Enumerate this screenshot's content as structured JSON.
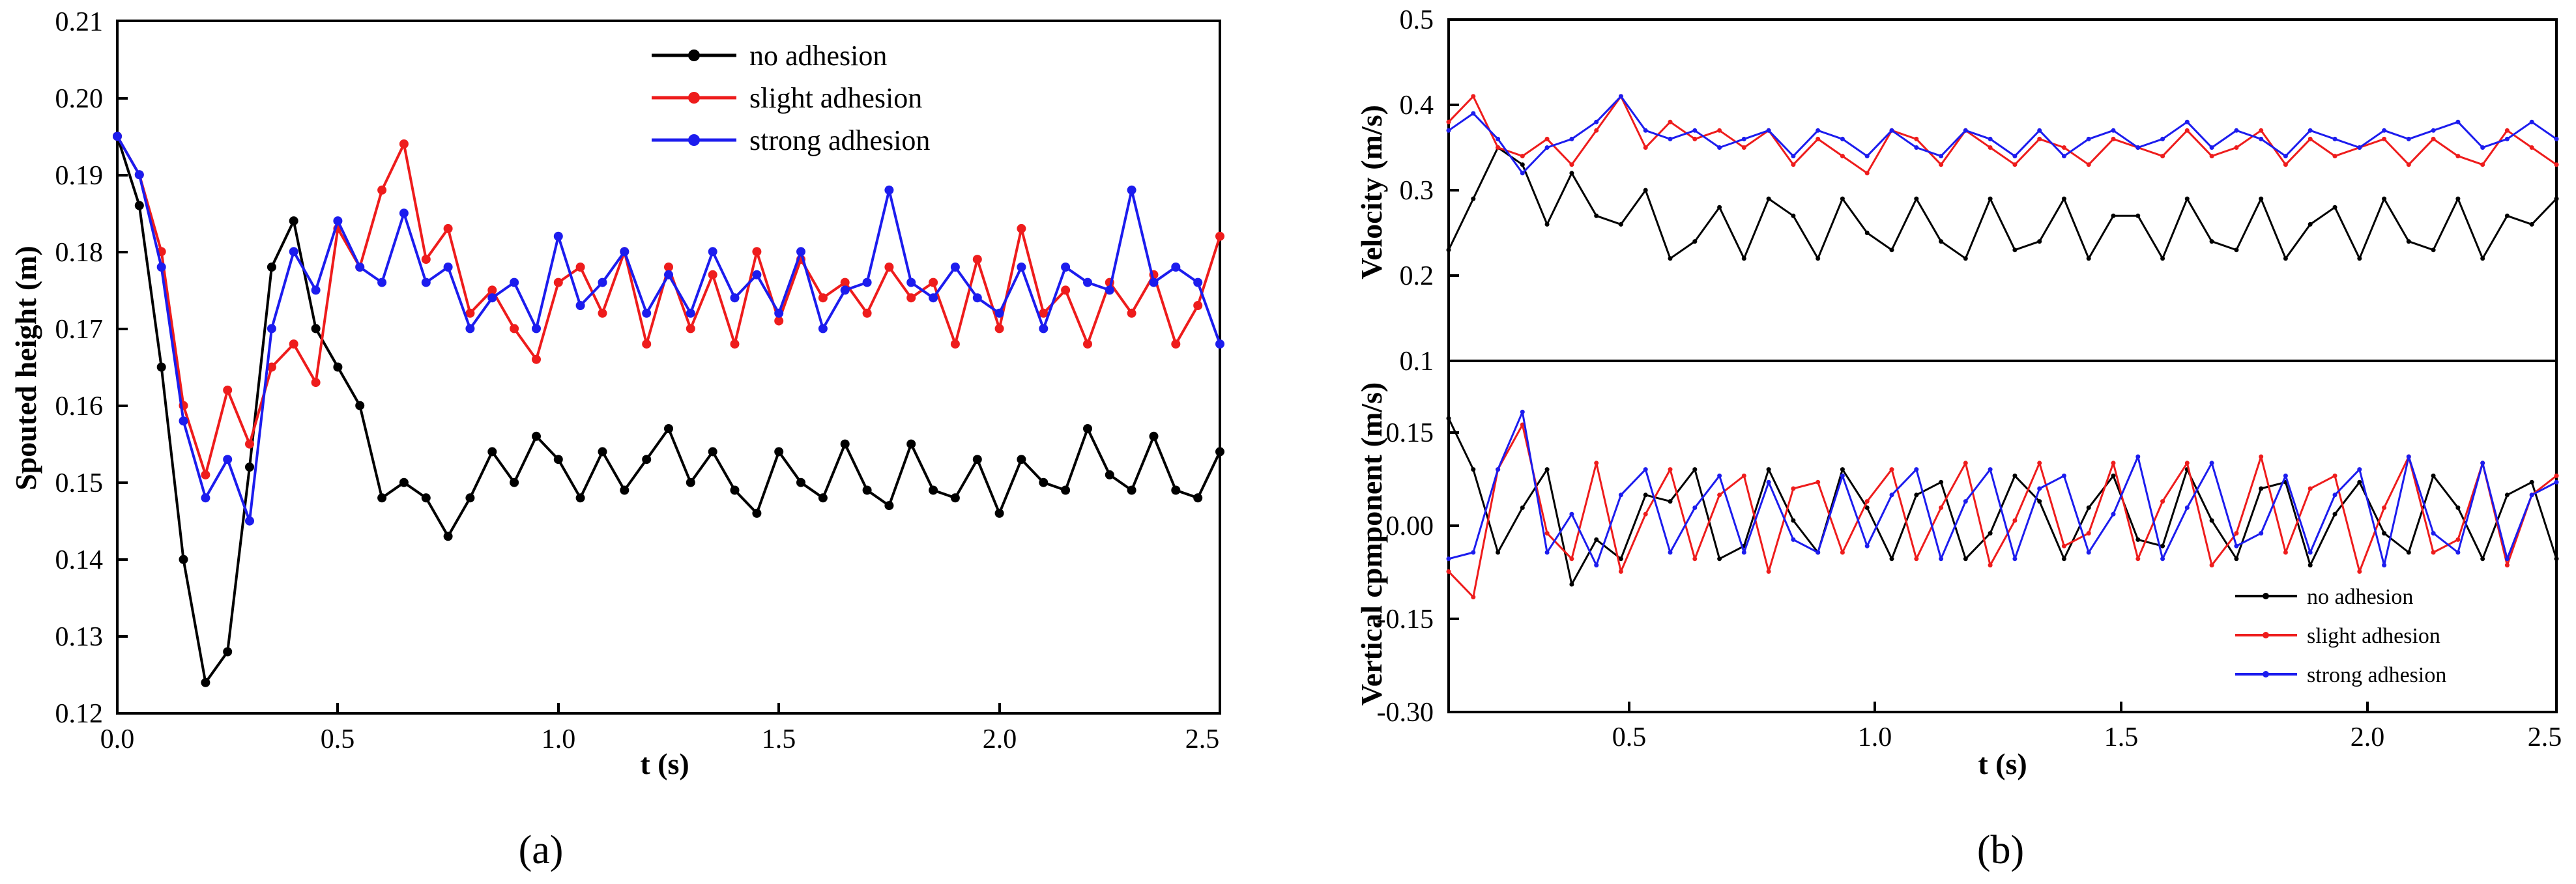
{
  "colors": {
    "no_adhesion": "#000000",
    "slight_adhesion": "#ee1c1c",
    "strong_adhesion": "#1c1cee"
  },
  "captions": {
    "a": "(a)",
    "b": "(b)"
  },
  "chart_data": [
    {
      "id": "a",
      "type": "line",
      "title": "",
      "xlabel": "t (s)",
      "ylabel": "Spouted height (m)",
      "xlim": [
        0.0,
        2.5
      ],
      "ylim": [
        0.12,
        0.21
      ],
      "x_ticks": [
        "0.0",
        "0.5",
        "1.0",
        "1.5",
        "2.0",
        "2.5"
      ],
      "y_ticks": [
        "0.12",
        "0.13",
        "0.14",
        "0.15",
        "0.16",
        "0.17",
        "0.18",
        "0.19",
        "0.20",
        "0.21"
      ],
      "legend_position": "top-right",
      "series": [
        {
          "name": "no adhesion",
          "color_key": "no_adhesion",
          "x": [
            0.0,
            0.05,
            0.1,
            0.15,
            0.2,
            0.25,
            0.3,
            0.35,
            0.4,
            0.45,
            0.5,
            0.55,
            0.6,
            0.65,
            0.7,
            0.75,
            0.8,
            0.85,
            0.9,
            0.95,
            1.0,
            1.05,
            1.1,
            1.15,
            1.2,
            1.25,
            1.3,
            1.35,
            1.4,
            1.45,
            1.5,
            1.55,
            1.6,
            1.65,
            1.7,
            1.75,
            1.8,
            1.85,
            1.9,
            1.95,
            2.0,
            2.05,
            2.1,
            2.15,
            2.2,
            2.25,
            2.3,
            2.35,
            2.4,
            2.45,
            2.5
          ],
          "y": [
            0.195,
            0.186,
            0.165,
            0.14,
            0.124,
            0.128,
            0.152,
            0.178,
            0.184,
            0.17,
            0.165,
            0.16,
            0.148,
            0.15,
            0.148,
            0.143,
            0.148,
            0.154,
            0.15,
            0.156,
            0.153,
            0.148,
            0.154,
            0.149,
            0.153,
            0.157,
            0.15,
            0.154,
            0.149,
            0.146,
            0.154,
            0.15,
            0.148,
            0.155,
            0.149,
            0.147,
            0.155,
            0.149,
            0.148,
            0.153,
            0.146,
            0.153,
            0.15,
            0.149,
            0.157,
            0.151,
            0.149,
            0.156,
            0.149,
            0.148,
            0.154
          ]
        },
        {
          "name": "slight adhesion",
          "color_key": "slight_adhesion",
          "x": [
            0.0,
            0.05,
            0.1,
            0.15,
            0.2,
            0.25,
            0.3,
            0.35,
            0.4,
            0.45,
            0.5,
            0.55,
            0.6,
            0.65,
            0.7,
            0.75,
            0.8,
            0.85,
            0.9,
            0.95,
            1.0,
            1.05,
            1.1,
            1.15,
            1.2,
            1.25,
            1.3,
            1.35,
            1.4,
            1.45,
            1.5,
            1.55,
            1.6,
            1.65,
            1.7,
            1.75,
            1.8,
            1.85,
            1.9,
            1.95,
            2.0,
            2.05,
            2.1,
            2.15,
            2.2,
            2.25,
            2.3,
            2.35,
            2.4,
            2.45,
            2.5
          ],
          "y": [
            0.195,
            0.19,
            0.18,
            0.16,
            0.151,
            0.162,
            0.155,
            0.165,
            0.168,
            0.163,
            0.183,
            0.178,
            0.188,
            0.194,
            0.179,
            0.183,
            0.172,
            0.175,
            0.17,
            0.166,
            0.176,
            0.178,
            0.172,
            0.18,
            0.168,
            0.178,
            0.17,
            0.177,
            0.168,
            0.18,
            0.171,
            0.179,
            0.174,
            0.176,
            0.172,
            0.178,
            0.174,
            0.176,
            0.168,
            0.179,
            0.17,
            0.183,
            0.172,
            0.175,
            0.168,
            0.176,
            0.172,
            0.177,
            0.168,
            0.173,
            0.182
          ]
        },
        {
          "name": "strong adhesion",
          "color_key": "strong_adhesion",
          "x": [
            0.0,
            0.05,
            0.1,
            0.15,
            0.2,
            0.25,
            0.3,
            0.35,
            0.4,
            0.45,
            0.5,
            0.55,
            0.6,
            0.65,
            0.7,
            0.75,
            0.8,
            0.85,
            0.9,
            0.95,
            1.0,
            1.05,
            1.1,
            1.15,
            1.2,
            1.25,
            1.3,
            1.35,
            1.4,
            1.45,
            1.5,
            1.55,
            1.6,
            1.65,
            1.7,
            1.75,
            1.8,
            1.85,
            1.9,
            1.95,
            2.0,
            2.05,
            2.1,
            2.15,
            2.2,
            2.25,
            2.3,
            2.35,
            2.4,
            2.45,
            2.5
          ],
          "y": [
            0.195,
            0.19,
            0.178,
            0.158,
            0.148,
            0.153,
            0.145,
            0.17,
            0.18,
            0.175,
            0.184,
            0.178,
            0.176,
            0.185,
            0.176,
            0.178,
            0.17,
            0.174,
            0.176,
            0.17,
            0.182,
            0.173,
            0.176,
            0.18,
            0.172,
            0.177,
            0.172,
            0.18,
            0.174,
            0.177,
            0.172,
            0.18,
            0.17,
            0.175,
            0.176,
            0.188,
            0.176,
            0.174,
            0.178,
            0.174,
            0.172,
            0.178,
            0.17,
            0.178,
            0.176,
            0.175,
            0.188,
            0.176,
            0.178,
            0.176,
            0.168
          ]
        }
      ]
    },
    {
      "id": "b_top",
      "type": "line",
      "title": "",
      "xlabel": "",
      "ylabel": "Velocity (m/s)",
      "xlim": [
        0.25,
        2.5
      ],
      "ylim": [
        0.1,
        0.5
      ],
      "y_ticks": [
        "0.1",
        "0.2",
        "0.3",
        "0.4",
        "0.5"
      ],
      "series": [
        {
          "name": "no adhesion",
          "color_key": "no_adhesion",
          "x": [
            0.25,
            0.3,
            0.35,
            0.4,
            0.45,
            0.5,
            0.55,
            0.6,
            0.65,
            0.7,
            0.75,
            0.8,
            0.85,
            0.9,
            0.95,
            1.0,
            1.05,
            1.1,
            1.15,
            1.2,
            1.25,
            1.3,
            1.35,
            1.4,
            1.45,
            1.5,
            1.55,
            1.6,
            1.65,
            1.7,
            1.75,
            1.8,
            1.85,
            1.9,
            1.95,
            2.0,
            2.05,
            2.1,
            2.15,
            2.2,
            2.25,
            2.3,
            2.35,
            2.4,
            2.45,
            2.5
          ],
          "y": [
            0.23,
            0.29,
            0.35,
            0.33,
            0.26,
            0.32,
            0.27,
            0.26,
            0.3,
            0.22,
            0.24,
            0.28,
            0.22,
            0.29,
            0.27,
            0.22,
            0.29,
            0.25,
            0.23,
            0.29,
            0.24,
            0.22,
            0.29,
            0.23,
            0.24,
            0.29,
            0.22,
            0.27,
            0.27,
            0.22,
            0.29,
            0.24,
            0.23,
            0.29,
            0.22,
            0.26,
            0.28,
            0.22,
            0.29,
            0.24,
            0.23,
            0.29,
            0.22,
            0.27,
            0.26,
            0.29
          ]
        },
        {
          "name": "slight adhesion",
          "color_key": "slight_adhesion",
          "x": [
            0.25,
            0.3,
            0.35,
            0.4,
            0.45,
            0.5,
            0.55,
            0.6,
            0.65,
            0.7,
            0.75,
            0.8,
            0.85,
            0.9,
            0.95,
            1.0,
            1.05,
            1.1,
            1.15,
            1.2,
            1.25,
            1.3,
            1.35,
            1.4,
            1.45,
            1.5,
            1.55,
            1.6,
            1.65,
            1.7,
            1.75,
            1.8,
            1.85,
            1.9,
            1.95,
            2.0,
            2.05,
            2.1,
            2.15,
            2.2,
            2.25,
            2.3,
            2.35,
            2.4,
            2.45,
            2.5
          ],
          "y": [
            0.38,
            0.41,
            0.35,
            0.34,
            0.36,
            0.33,
            0.37,
            0.41,
            0.35,
            0.38,
            0.36,
            0.37,
            0.35,
            0.37,
            0.33,
            0.36,
            0.34,
            0.32,
            0.37,
            0.36,
            0.33,
            0.37,
            0.35,
            0.33,
            0.36,
            0.35,
            0.33,
            0.36,
            0.35,
            0.34,
            0.37,
            0.34,
            0.35,
            0.37,
            0.33,
            0.36,
            0.34,
            0.35,
            0.36,
            0.33,
            0.36,
            0.34,
            0.33,
            0.37,
            0.35,
            0.33
          ]
        },
        {
          "name": "strong adhesion",
          "color_key": "strong_adhesion",
          "x": [
            0.25,
            0.3,
            0.35,
            0.4,
            0.45,
            0.5,
            0.55,
            0.6,
            0.65,
            0.7,
            0.75,
            0.8,
            0.85,
            0.9,
            0.95,
            1.0,
            1.05,
            1.1,
            1.15,
            1.2,
            1.25,
            1.3,
            1.35,
            1.4,
            1.45,
            1.5,
            1.55,
            1.6,
            1.65,
            1.7,
            1.75,
            1.8,
            1.85,
            1.9,
            1.95,
            2.0,
            2.05,
            2.1,
            2.15,
            2.2,
            2.25,
            2.3,
            2.35,
            2.4,
            2.45,
            2.5
          ],
          "y": [
            0.37,
            0.39,
            0.36,
            0.32,
            0.35,
            0.36,
            0.38,
            0.41,
            0.37,
            0.36,
            0.37,
            0.35,
            0.36,
            0.37,
            0.34,
            0.37,
            0.36,
            0.34,
            0.37,
            0.35,
            0.34,
            0.37,
            0.36,
            0.34,
            0.37,
            0.34,
            0.36,
            0.37,
            0.35,
            0.36,
            0.38,
            0.35,
            0.37,
            0.36,
            0.34,
            0.37,
            0.36,
            0.35,
            0.37,
            0.36,
            0.37,
            0.38,
            0.35,
            0.36,
            0.38,
            0.36
          ]
        }
      ]
    },
    {
      "id": "b_bottom",
      "type": "line",
      "title": "",
      "xlabel": "t (s)",
      "ylabel": "Vertical cpmponent (m/s)",
      "xlim": [
        0.25,
        2.5
      ],
      "ylim": [
        -0.3,
        0.25
      ],
      "x_ticks": [
        "0.5",
        "1.0",
        "1.5",
        "2.0",
        "2.5"
      ],
      "y_ticks": [
        "-0.30",
        "-0.15",
        "0.00",
        "0.15"
      ],
      "legend_position": "bottom-right",
      "series": [
        {
          "name": "no adhesion",
          "color_key": "no_adhesion",
          "x": [
            0.25,
            0.3,
            0.35,
            0.4,
            0.45,
            0.5,
            0.55,
            0.6,
            0.65,
            0.7,
            0.75,
            0.8,
            0.85,
            0.9,
            0.95,
            1.0,
            1.05,
            1.1,
            1.15,
            1.2,
            1.25,
            1.3,
            1.35,
            1.4,
            1.45,
            1.5,
            1.55,
            1.6,
            1.65,
            1.7,
            1.75,
            1.8,
            1.85,
            1.9,
            1.95,
            2.0,
            2.05,
            2.1,
            2.15,
            2.2,
            2.25,
            2.3,
            2.35,
            2.4,
            2.45,
            2.5
          ],
          "y": [
            0.16,
            0.08,
            -0.05,
            0.02,
            0.08,
            -0.1,
            -0.03,
            -0.06,
            0.04,
            0.03,
            0.08,
            -0.06,
            -0.04,
            0.08,
            0.0,
            -0.05,
            0.08,
            0.02,
            -0.06,
            0.04,
            0.06,
            -0.06,
            -0.02,
            0.07,
            0.03,
            -0.06,
            0.02,
            0.07,
            -0.03,
            -0.04,
            0.08,
            0.0,
            -0.06,
            0.05,
            0.06,
            -0.07,
            0.01,
            0.06,
            -0.02,
            -0.05,
            0.07,
            0.02,
            -0.06,
            0.04,
            0.06,
            -0.06
          ]
        },
        {
          "name": "slight adhesion",
          "color_key": "slight_adhesion",
          "x": [
            0.25,
            0.3,
            0.35,
            0.4,
            0.45,
            0.5,
            0.55,
            0.6,
            0.65,
            0.7,
            0.75,
            0.8,
            0.85,
            0.9,
            0.95,
            1.0,
            1.05,
            1.1,
            1.15,
            1.2,
            1.25,
            1.3,
            1.35,
            1.4,
            1.45,
            1.5,
            1.55,
            1.6,
            1.65,
            1.7,
            1.75,
            1.8,
            1.85,
            1.9,
            1.95,
            2.0,
            2.05,
            2.1,
            2.15,
            2.2,
            2.25,
            2.3,
            2.35,
            2.4,
            2.45,
            2.5
          ],
          "y": [
            -0.08,
            -0.12,
            0.08,
            0.15,
            -0.02,
            -0.06,
            0.09,
            -0.08,
            0.01,
            0.08,
            -0.06,
            0.04,
            0.07,
            -0.08,
            0.05,
            0.06,
            -0.05,
            0.03,
            0.08,
            -0.06,
            0.02,
            0.09,
            -0.07,
            0.0,
            0.09,
            -0.04,
            -0.02,
            0.09,
            -0.06,
            0.03,
            0.09,
            -0.07,
            -0.02,
            0.1,
            -0.05,
            0.05,
            0.07,
            -0.08,
            0.02,
            0.1,
            -0.05,
            -0.03,
            0.09,
            -0.07,
            0.04,
            0.07
          ]
        },
        {
          "name": "strong adhesion",
          "color_key": "strong_adhesion",
          "x": [
            0.25,
            0.3,
            0.35,
            0.4,
            0.45,
            0.5,
            0.55,
            0.6,
            0.65,
            0.7,
            0.75,
            0.8,
            0.85,
            0.9,
            0.95,
            1.0,
            1.05,
            1.1,
            1.15,
            1.2,
            1.25,
            1.3,
            1.35,
            1.4,
            1.45,
            1.5,
            1.55,
            1.6,
            1.65,
            1.7,
            1.75,
            1.8,
            1.85,
            1.9,
            1.95,
            2.0,
            2.05,
            2.1,
            2.15,
            2.2,
            2.25,
            2.3,
            2.35,
            2.4,
            2.45,
            2.5
          ],
          "y": [
            -0.06,
            -0.05,
            0.08,
            0.17,
            -0.05,
            0.01,
            -0.07,
            0.04,
            0.08,
            -0.05,
            0.02,
            0.07,
            -0.05,
            0.06,
            -0.03,
            -0.05,
            0.07,
            -0.04,
            0.04,
            0.08,
            -0.06,
            0.03,
            0.08,
            -0.06,
            0.05,
            0.07,
            -0.05,
            0.01,
            0.1,
            -0.06,
            0.02,
            0.09,
            -0.04,
            -0.02,
            0.07,
            -0.05,
            0.04,
            0.08,
            -0.07,
            0.1,
            -0.02,
            -0.05,
            0.09,
            -0.06,
            0.04,
            0.06
          ]
        }
      ]
    }
  ]
}
